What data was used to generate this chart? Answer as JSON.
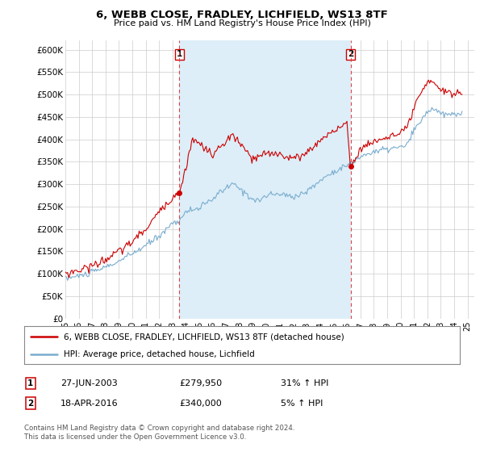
{
  "title": "6, WEBB CLOSE, FRADLEY, LICHFIELD, WS13 8TF",
  "subtitle": "Price paid vs. HM Land Registry's House Price Index (HPI)",
  "legend_line1": "6, WEBB CLOSE, FRADLEY, LICHFIELD, WS13 8TF (detached house)",
  "legend_line2": "HPI: Average price, detached house, Lichfield",
  "sale1_date": "27-JUN-2003",
  "sale1_price": "£279,950",
  "sale1_hpi": "31% ↑ HPI",
  "sale1_year": 2003.49,
  "sale1_value": 279950,
  "sale2_date": "18-APR-2016",
  "sale2_price": "£340,000",
  "sale2_hpi": "5% ↑ HPI",
  "sale2_year": 2016.29,
  "sale2_value": 340000,
  "price_color": "#cc0000",
  "hpi_color": "#7aadcf",
  "shade_color": "#ddeef8",
  "dashed_color": "#dd4444",
  "background_color": "#ffffff",
  "grid_color": "#cccccc",
  "ylim": [
    0,
    620000
  ],
  "xlim": [
    1995.0,
    2025.5
  ],
  "yticks": [
    0,
    50000,
    100000,
    150000,
    200000,
    250000,
    300000,
    350000,
    400000,
    450000,
    500000,
    550000,
    600000
  ],
  "ytick_labels": [
    "£0",
    "£50K",
    "£100K",
    "£150K",
    "£200K",
    "£250K",
    "£300K",
    "£350K",
    "£400K",
    "£450K",
    "£500K",
    "£550K",
    "£600K"
  ],
  "xticks": [
    1995,
    1996,
    1997,
    1998,
    1999,
    2000,
    2001,
    2002,
    2003,
    2004,
    2005,
    2006,
    2007,
    2008,
    2009,
    2010,
    2011,
    2012,
    2013,
    2014,
    2015,
    2016,
    2017,
    2018,
    2019,
    2020,
    2021,
    2022,
    2023,
    2024,
    2025
  ],
  "xtick_labels": [
    "95",
    "96",
    "97",
    "98",
    "99",
    "00",
    "01",
    "02",
    "03",
    "04",
    "05",
    "06",
    "07",
    "08",
    "09",
    "10",
    "11",
    "12",
    "13",
    "14",
    "15",
    "16",
    "17",
    "18",
    "19",
    "20",
    "21",
    "22",
    "23",
    "24",
    "25"
  ],
  "footnote": "Contains HM Land Registry data © Crown copyright and database right 2024.\nThis data is licensed under the Open Government Licence v3.0."
}
